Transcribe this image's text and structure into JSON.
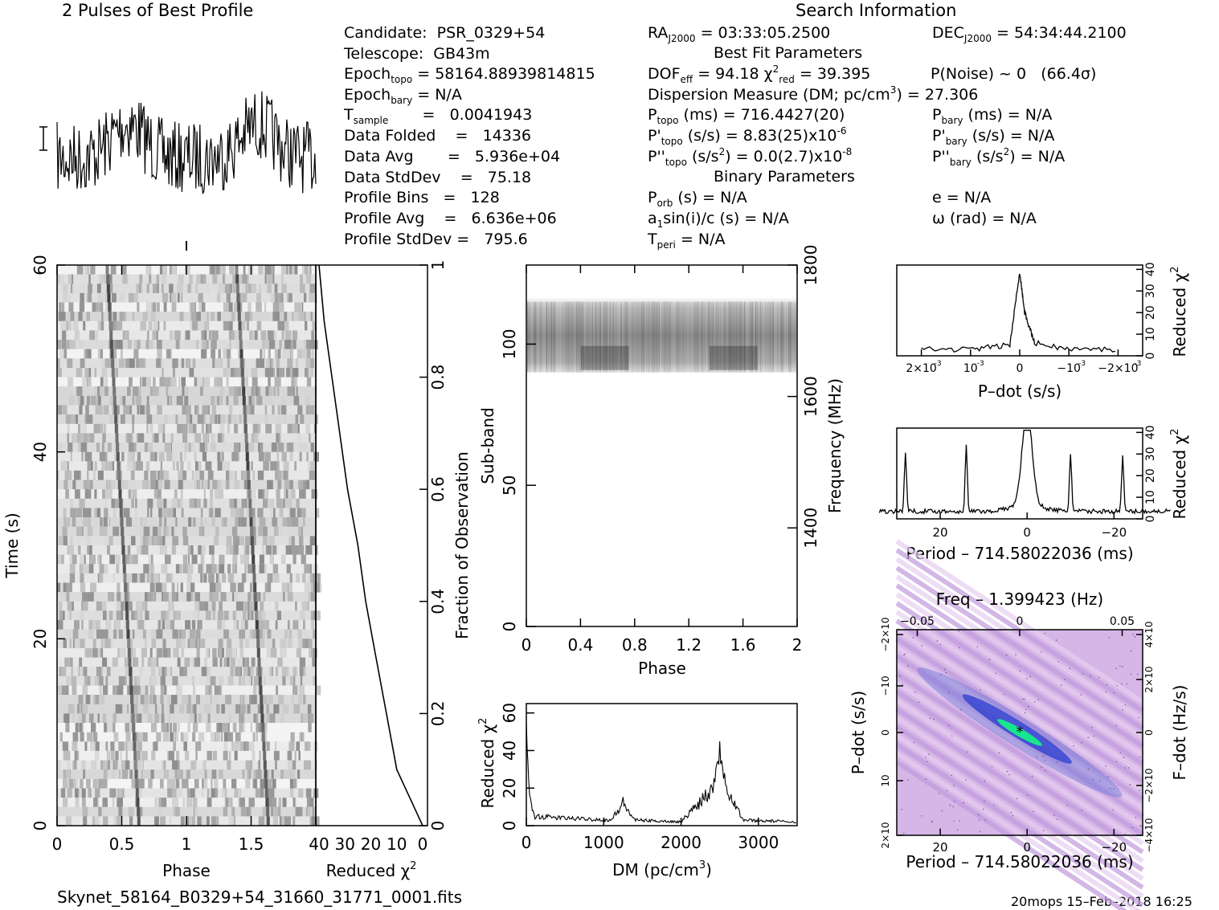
{
  "header": {
    "profile_title": "2 Pulses of Best Profile",
    "search_title": "Search Information",
    "best_fit_title": "Best Fit Parameters",
    "binary_title": "Binary Parameters"
  },
  "info_left": {
    "candidate": "Candidate:  PSR_0329+54",
    "telescope": "Telescope:  GB43m",
    "epoch_topo": "= 58164.88939814815",
    "epoch_bary": "= N/A",
    "t_sample": "=   0.0041943",
    "data_folded": "Data Folded    =   14336",
    "data_avg": "Data Avg       =   5.936e+04",
    "data_stddev": "Data StdDev    =   75.18",
    "profile_bins": "Profile Bins   =   128",
    "profile_avg": "Profile Avg    =   6.636e+06",
    "profile_stddev": "Profile StdDev =   795.6"
  },
  "info_mid": {
    "ra": "= 03:33:05.2500",
    "dof": "= 94.18",
    "chi2_red": "= 39.395",
    "dm_line": "Dispersion Measure (DM; pc/cm",
    "dm_value": ") = 27.306",
    "p_topo": "(ms) =  716.4427(20)",
    "pd_topo": "(s/s) =  8.83(25)x10",
    "pd_topo_exp": "-6",
    "pdd_topo": "(s/s",
    "pdd_topo_val": ") = 0.0(2.7)x10",
    "pdd_topo_exp": "-8",
    "p_orb": "(s) = N/A",
    "a1sini": "sin(i)/c (s) = N/A",
    "t_peri": "= N/A"
  },
  "info_right": {
    "dec": "= 54:34:44.2100",
    "p_noise": "P(Noise) ~ 0   (66.4σ)",
    "p_bary": "(ms) = N/A",
    "pd_bary": "(s/s) = N/A",
    "pdd_bary": "(s/s",
    "pdd_bary_val": ") = N/A",
    "e": "e = N/A",
    "omega": "ω (rad) = N/A"
  },
  "footer": {
    "filename": "Skynet_58164_B0329+54_31660_31771_0001.fits",
    "timestamp": "20mops 15–Feb–2018 16:25"
  },
  "chart_data": [
    {
      "id": "time_phase",
      "type": "heatmap",
      "xlabel": "Phase",
      "ylabel": "Time (s)",
      "xlim": [
        0,
        2
      ],
      "ylim": [
        0,
        60
      ],
      "xticks": [
        "0",
        "0.5",
        "1",
        "1.5"
      ],
      "yticks": [
        "0",
        "20",
        "40",
        "60"
      ],
      "pulse_phase": [
        0.5,
        1.5
      ]
    },
    {
      "id": "chi2_vs_time",
      "type": "line",
      "xlabel": "Reduced χ",
      "ylabel": "Fraction of Observation",
      "xticks": [
        "40",
        "30",
        "20",
        "10",
        "0"
      ],
      "yticks": [
        "0",
        "0.2",
        "0.4",
        "0.6",
        "0.8",
        "1"
      ],
      "points": [
        [
          0,
          0
        ],
        [
          5,
          0.05
        ],
        [
          10,
          0.1
        ],
        [
          14,
          0.2
        ],
        [
          18,
          0.3
        ],
        [
          22,
          0.4
        ],
        [
          25,
          0.5
        ],
        [
          29,
          0.6
        ],
        [
          32,
          0.7
        ],
        [
          35,
          0.8
        ],
        [
          38,
          0.9
        ],
        [
          40,
          1.0
        ]
      ]
    },
    {
      "id": "subband_phase",
      "type": "heatmap",
      "xlabel": "Phase",
      "ylabel": "Sub-band",
      "y2label": "Frequency (MHz)",
      "xticks": [
        "0",
        "0.4",
        "0.8",
        "1.2",
        "1.6",
        "2"
      ],
      "yticks": [
        "0",
        "50",
        "100"
      ],
      "y2ticks": [
        "1400",
        "1600",
        "1800"
      ],
      "band_range": [
        90,
        115
      ]
    },
    {
      "id": "dm_chi2",
      "type": "line",
      "xlabel": "DM (pc/cm",
      "ylabel": "Reduced χ",
      "xticks": [
        "0",
        "1000",
        "2000",
        "3000"
      ],
      "yticks": [
        "0",
        "20",
        "40",
        "60"
      ],
      "xlim": [
        0,
        3500
      ],
      "ylim": [
        0,
        65
      ],
      "points": [
        [
          0,
          50
        ],
        [
          30,
          20
        ],
        [
          100,
          5
        ],
        [
          500,
          4
        ],
        [
          1100,
          3
        ],
        [
          1250,
          12
        ],
        [
          1400,
          3
        ],
        [
          2000,
          2
        ],
        [
          2400,
          20
        ],
        [
          2500,
          40
        ],
        [
          2600,
          20
        ],
        [
          2800,
          3
        ],
        [
          3500,
          2
        ]
      ]
    },
    {
      "id": "pdot_chi2",
      "type": "line",
      "xlabel": "P–dot (s/s)",
      "ylabel": "Reduced χ",
      "xticks": [
        "2×10",
        "10",
        "0",
        "−10",
        "−2×10"
      ],
      "xtick_exp": "-3",
      "yticks": [
        "0",
        "10",
        "20",
        "30",
        "40"
      ],
      "points": [
        [
          0.002,
          3
        ],
        [
          0.001,
          3
        ],
        [
          0.0002,
          5
        ],
        [
          0,
          39
        ],
        [
          -0.0001,
          20
        ],
        [
          -0.0003,
          6
        ],
        [
          -0.001,
          3
        ],
        [
          -0.002,
          3
        ]
      ]
    },
    {
      "id": "period_chi2",
      "type": "line",
      "xlabel": "Period – 714.58022036 (ms)",
      "ylabel": "Reduced χ",
      "xticks": [
        "20",
        "0",
        "−20"
      ],
      "yticks": [
        "0",
        "10",
        "20",
        "30",
        "40"
      ],
      "peaks": [
        [
          28,
          28
        ],
        [
          14,
          30
        ],
        [
          0,
          40
        ],
        [
          -10,
          27
        ],
        [
          -22,
          25
        ]
      ]
    },
    {
      "id": "p_pdot_plane",
      "type": "heatmap",
      "xlabel": "Period – 714.58022036 (ms)",
      "ylabel": "P–dot (s/s)",
      "x2label": "Freq – 1.399423 (Hz)",
      "y2label": "F–dot (Hz/s)",
      "xticks": [
        "20",
        "0",
        "−20"
      ],
      "x2ticks": [
        "−0.05",
        "0",
        "0.05"
      ],
      "yticks": [
        "2×10",
        "10",
        "0",
        "−10",
        "−2×10"
      ],
      "y2ticks": [
        "−4×10",
        "−2×10",
        "0",
        "2×10",
        "4×10"
      ]
    }
  ]
}
